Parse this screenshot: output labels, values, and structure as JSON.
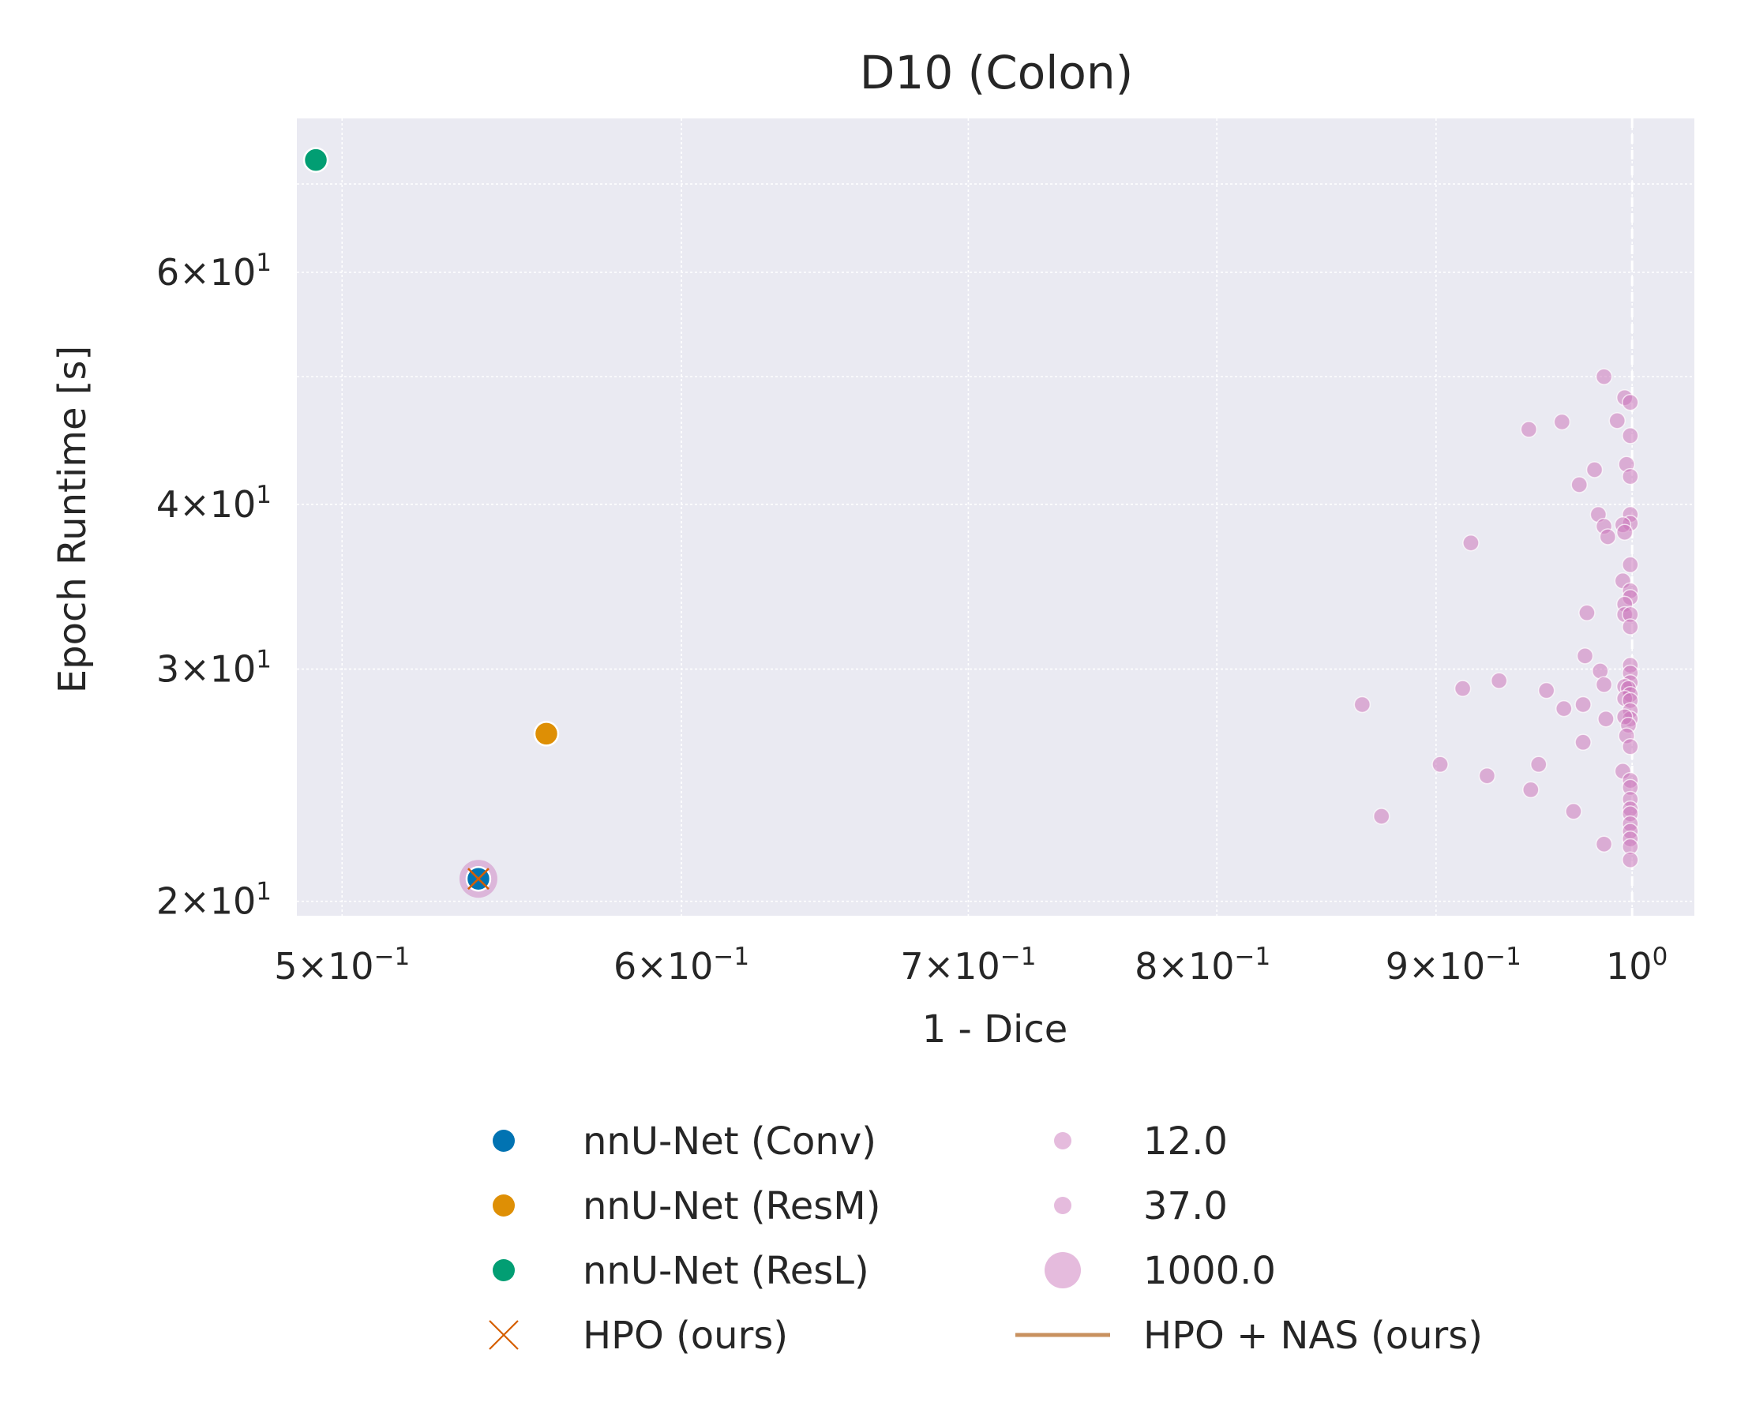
{
  "chart_data": {
    "type": "scatter",
    "title": "D10 (Colon)",
    "xlabel": "1 - Dice",
    "ylabel": "Epoch Runtime [s]",
    "x_scale": "log",
    "y_scale": "log",
    "xlim": [
      0.488,
      1.034
    ],
    "ylim": [
      19.5,
      78.5
    ],
    "x_ticks": [
      {
        "value": 0.5,
        "mantissa": "5",
        "exponent": "−1"
      },
      {
        "value": 0.6,
        "mantissa": "6",
        "exponent": "−1"
      },
      {
        "value": 0.7,
        "mantissa": "7",
        "exponent": "−1"
      },
      {
        "value": 0.8,
        "mantissa": "8",
        "exponent": "−1"
      },
      {
        "value": 0.9,
        "mantissa": "9",
        "exponent": "−1"
      },
      {
        "value": 1.0,
        "mantissa": "",
        "exponent": "0"
      }
    ],
    "y_ticks": [
      {
        "value": 20,
        "mantissa": "2",
        "exponent": "1"
      },
      {
        "value": 30,
        "mantissa": "3",
        "exponent": "1"
      },
      {
        "value": 40,
        "mantissa": "4",
        "exponent": "1"
      },
      {
        "value": 60,
        "mantissa": "6",
        "exponent": "1"
      }
    ],
    "minor_y_grid": [
      50,
      70
    ],
    "reference_line_x": 1.0,
    "grid": true,
    "background_color": "#eaeaf2",
    "series": [
      {
        "name": "nnU-Net (Conv)",
        "color": "#0173b2",
        "points": [
          [
            0.538,
            20.8
          ]
        ]
      },
      {
        "name": "nnU-Net (ResM)",
        "color": "#de8f05",
        "points": [
          [
            0.558,
            26.8
          ]
        ]
      },
      {
        "name": "nnU-Net (ResL)",
        "color": "#029e73",
        "points": [
          [
            0.493,
            73.0
          ]
        ]
      },
      {
        "name": "HPO (ours)",
        "color": "#d55e00",
        "marker": "x",
        "points": [
          [
            0.538,
            20.8
          ]
        ]
      },
      {
        "name": "HPO + NAS (ours)",
        "color": "#c8915f",
        "marker": "line",
        "points": [
          [
            0.538,
            20.8
          ]
        ]
      }
    ],
    "budget_legend": [
      {
        "label": "12.0",
        "size": "small"
      },
      {
        "label": "37.0",
        "size": "small"
      },
      {
        "label": "1000.0",
        "size": "large"
      }
    ],
    "nas_color": "#cc78bc",
    "nas_highlight": [
      0.538,
      20.8
    ],
    "nas_points": [
      [
        0.985,
        50.0
      ],
      [
        0.996,
        48.2
      ],
      [
        0.999,
        47.8
      ],
      [
        0.992,
        46.3
      ],
      [
        0.963,
        46.2
      ],
      [
        0.946,
        45.6
      ],
      [
        0.999,
        45.1
      ],
      [
        0.997,
        42.9
      ],
      [
        0.98,
        42.5
      ],
      [
        0.999,
        42.0
      ],
      [
        0.972,
        41.4
      ],
      [
        0.982,
        39.3
      ],
      [
        0.999,
        39.3
      ],
      [
        0.999,
        38.7
      ],
      [
        0.985,
        38.5
      ],
      [
        0.995,
        38.6
      ],
      [
        0.996,
        38.1
      ],
      [
        0.987,
        37.8
      ],
      [
        0.917,
        37.4
      ],
      [
        0.999,
        36.0
      ],
      [
        0.995,
        35.0
      ],
      [
        0.999,
        34.4
      ],
      [
        0.999,
        34.0
      ],
      [
        0.996,
        33.6
      ],
      [
        0.976,
        33.1
      ],
      [
        0.996,
        33.0
      ],
      [
        0.999,
        33.0
      ],
      [
        0.999,
        32.3
      ],
      [
        0.975,
        30.7
      ],
      [
        0.999,
        30.2
      ],
      [
        0.999,
        29.8
      ],
      [
        0.983,
        29.9
      ],
      [
        0.999,
        29.3
      ],
      [
        0.931,
        29.4
      ],
      [
        0.913,
        29.0
      ],
      [
        0.996,
        29.1
      ],
      [
        0.998,
        29.0
      ],
      [
        0.999,
        28.7
      ],
      [
        0.955,
        28.9
      ],
      [
        0.996,
        28.5
      ],
      [
        0.999,
        28.4
      ],
      [
        0.985,
        29.2
      ],
      [
        0.974,
        28.2
      ],
      [
        0.865,
        28.2
      ],
      [
        0.964,
        28.0
      ],
      [
        0.999,
        27.9
      ],
      [
        0.999,
        27.5
      ],
      [
        0.996,
        27.6
      ],
      [
        0.986,
        27.5
      ],
      [
        0.998,
        27.2
      ],
      [
        0.997,
        26.7
      ],
      [
        0.974,
        26.4
      ],
      [
        0.999,
        26.2
      ],
      [
        0.902,
        25.4
      ],
      [
        0.951,
        25.4
      ],
      [
        0.995,
        25.1
      ],
      [
        0.925,
        24.9
      ],
      [
        0.999,
        24.7
      ],
      [
        0.999,
        24.4
      ],
      [
        0.947,
        24.3
      ],
      [
        0.999,
        23.9
      ],
      [
        0.999,
        23.5
      ],
      [
        0.999,
        23.3
      ],
      [
        0.969,
        23.4
      ],
      [
        0.874,
        23.2
      ],
      [
        0.999,
        22.9
      ],
      [
        0.999,
        22.6
      ],
      [
        0.999,
        22.3
      ],
      [
        0.985,
        22.1
      ],
      [
        0.999,
        22.0
      ],
      [
        0.999,
        21.5
      ]
    ]
  }
}
